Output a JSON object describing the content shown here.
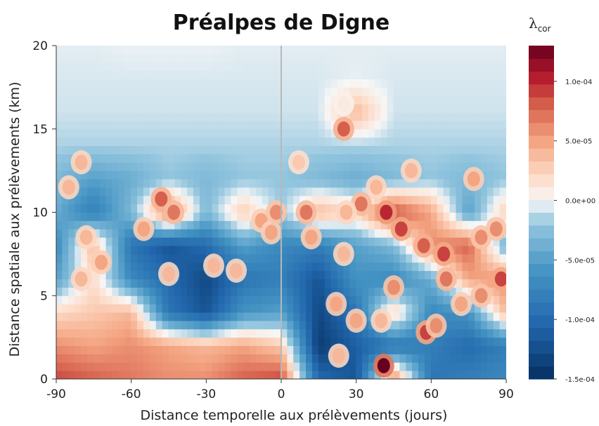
{
  "chart_data": {
    "type": "heatmap",
    "title": "Préalpes de Digne",
    "xlabel": "Distance temporelle aux prélèvements (jours)",
    "ylabel": "Distance spatiale aux prélèvements (km)",
    "xlim": [
      -90,
      90
    ],
    "ylim": [
      0,
      20
    ],
    "x_ticks": [
      -90,
      -60,
      -30,
      0,
      30,
      60,
      90
    ],
    "x_tick_labels": [
      "-90",
      "-60",
      "-30",
      "0",
      "30",
      "60",
      "90"
    ],
    "y_ticks": [
      0,
      5,
      10,
      15,
      20
    ],
    "y_tick_labels": [
      "0",
      "5",
      "10",
      "15",
      "20"
    ],
    "reference_line_x": 0,
    "colorbar": {
      "title_symbol": "λ",
      "title_subscript": "cor",
      "min": -0.00015,
      "max": 0.00013,
      "ticks": [
        0.0001,
        5e-05,
        0,
        -5e-05,
        -0.0001,
        -0.00015
      ],
      "tick_labels": [
        "1.0e-04",
        "5.0e-05",
        "0.0e+00",
        "-5.0e-05",
        "-1.0e-04",
        "-1.5e-04"
      ]
    },
    "grid": false,
    "colormap": "RdBu_r",
    "value_grid": {
      "x": [
        -90,
        -75,
        -60,
        -45,
        -30,
        -15,
        0,
        15,
        30,
        45,
        60,
        75,
        90
      ],
      "y": [
        0,
        2,
        4,
        6,
        8,
        10,
        12,
        14,
        16,
        18,
        20
      ],
      "z": [
        [
          9e-05,
          8e-05,
          7e-05,
          6e-05,
          6e-05,
          8e-05,
          9e-05,
          -0.0001,
          -0.00012,
          7e-05,
          -9e-05,
          -8e-05,
          -7e-05
        ],
        [
          6e-05,
          5e-05,
          6e-05,
          5e-05,
          4e-05,
          5e-05,
          3e-05,
          -0.00014,
          -0.00011,
          -9e-05,
          -8e-05,
          -0.0001,
          -8e-05
        ],
        [
          2e-05,
          3e-05,
          4e-05,
          -9e-05,
          -0.00012,
          -6e-05,
          -5e-05,
          -0.00013,
          -9e-05,
          3e-05,
          -7e-05,
          -6e-05,
          4e-05
        ],
        [
          -5e-05,
          2e-05,
          -7e-05,
          -0.0001,
          -0.00013,
          -9e-05,
          -8e-05,
          -0.00012,
          -6e-05,
          -7e-05,
          -4e-05,
          5e-05,
          6e-05
        ],
        [
          -7e-05,
          4e-05,
          -9e-05,
          -0.00012,
          -0.0001,
          -5e-05,
          -7e-05,
          -8e-05,
          -5e-05,
          -3e-05,
          6e-05,
          8e-05,
          -4e-05
        ],
        [
          -4e-05,
          -8e-05,
          -3e-05,
          7e-05,
          -3e-05,
          3e-05,
          -2e-05,
          4e-05,
          2e-05,
          9e-05,
          5e-05,
          -5e-05,
          3e-05
        ],
        [
          -3e-05,
          -5e-05,
          -4e-05,
          -2e-05,
          -3e-05,
          -2e-05,
          -2e-05,
          -3e-05,
          -4e-05,
          -3e-05,
          -2e-05,
          -3e-05,
          -2e-05
        ],
        [
          -1.5e-05,
          -1.5e-05,
          -1.5e-05,
          -1.5e-05,
          -1.5e-05,
          -1.5e-05,
          -1.5e-05,
          -1.5e-05,
          -1.5e-05,
          -1.5e-05,
          -1.5e-05,
          -1.5e-05,
          -1.5e-05
        ],
        [
          -8e-06,
          -8e-06,
          -8e-06,
          -8e-06,
          -8e-06,
          -8e-06,
          -8e-06,
          -8e-06,
          4e-05,
          -8e-06,
          -8e-06,
          -8e-06,
          -8e-06
        ],
        [
          -6e-06,
          -6e-06,
          -6e-06,
          -6e-06,
          -6e-06,
          -6e-06,
          -6e-06,
          -6e-06,
          -3e-06,
          -6e-06,
          -6e-06,
          -6e-06,
          -6e-06
        ],
        [
          -4e-06,
          -4e-06,
          -2e-06,
          -2e-06,
          -2e-06,
          -4e-06,
          -4e-06,
          -4e-06,
          -4e-06,
          -4e-06,
          -4e-06,
          -4e-06,
          -4e-06
        ]
      ]
    },
    "annotations": {
      "blobs": [
        {
          "x": -80,
          "y": 13,
          "v": 4e-05
        },
        {
          "x": -85,
          "y": 11.5,
          "v": 4e-05
        },
        {
          "x": -78,
          "y": 8.5,
          "v": 4e-05
        },
        {
          "x": -72,
          "y": 7,
          "v": 5e-05
        },
        {
          "x": -80,
          "y": 6,
          "v": 4e-05
        },
        {
          "x": -48,
          "y": 10.8,
          "v": 8e-05
        },
        {
          "x": -43,
          "y": 10,
          "v": 7e-05
        },
        {
          "x": -55,
          "y": 9,
          "v": 5e-05
        },
        {
          "x": -45,
          "y": 6.3,
          "v": 4e-05
        },
        {
          "x": -18,
          "y": 6.5,
          "v": 4e-05
        },
        {
          "x": -27,
          "y": 6.8,
          "v": 4e-05
        },
        {
          "x": -8,
          "y": 9.5,
          "v": 5e-05
        },
        {
          "x": -4,
          "y": 8.8,
          "v": 5e-05
        },
        {
          "x": -2,
          "y": 10,
          "v": 6e-05
        },
        {
          "x": 25,
          "y": 15,
          "v": 8e-05
        },
        {
          "x": 25,
          "y": 16.5,
          "v": 1e-05
        },
        {
          "x": 7,
          "y": 13,
          "v": 3e-05
        },
        {
          "x": 10,
          "y": 10,
          "v": 7e-05
        },
        {
          "x": 12,
          "y": 8.5,
          "v": 5e-05
        },
        {
          "x": 25,
          "y": 7.5,
          "v": 4e-05
        },
        {
          "x": 22,
          "y": 4.5,
          "v": 5e-05
        },
        {
          "x": 32,
          "y": 10.5,
          "v": 7e-05
        },
        {
          "x": 38,
          "y": 11.5,
          "v": 4e-05
        },
        {
          "x": 42,
          "y": 10,
          "v": 0.0001
        },
        {
          "x": 48,
          "y": 9,
          "v": 9e-05
        },
        {
          "x": 52,
          "y": 12.5,
          "v": 4e-05
        },
        {
          "x": 57,
          "y": 8,
          "v": 8e-05
        },
        {
          "x": 65,
          "y": 7.5,
          "v": 9e-05
        },
        {
          "x": 66,
          "y": 6,
          "v": 7e-05
        },
        {
          "x": 77,
          "y": 12,
          "v": 5e-05
        },
        {
          "x": 80,
          "y": 8.5,
          "v": 6e-05
        },
        {
          "x": 86,
          "y": 9,
          "v": 6e-05
        },
        {
          "x": 88,
          "y": 6,
          "v": 9e-05
        },
        {
          "x": 45,
          "y": 5.5,
          "v": 6e-05
        },
        {
          "x": 40,
          "y": 3.5,
          "v": 4e-05
        },
        {
          "x": 30,
          "y": 3.5,
          "v": 5e-05
        },
        {
          "x": 58,
          "y": 2.8,
          "v": 9e-05
        },
        {
          "x": 62,
          "y": 3.2,
          "v": 6e-05
        },
        {
          "x": 72,
          "y": 4.5,
          "v": 5e-05
        },
        {
          "x": 80,
          "y": 5,
          "v": 6e-05
        },
        {
          "x": 41,
          "y": 0.8,
          "v": 0.00013
        },
        {
          "x": 23,
          "y": 1.4,
          "v": 4e-05
        },
        {
          "x": 26,
          "y": 10,
          "v": 4e-05
        }
      ]
    }
  }
}
